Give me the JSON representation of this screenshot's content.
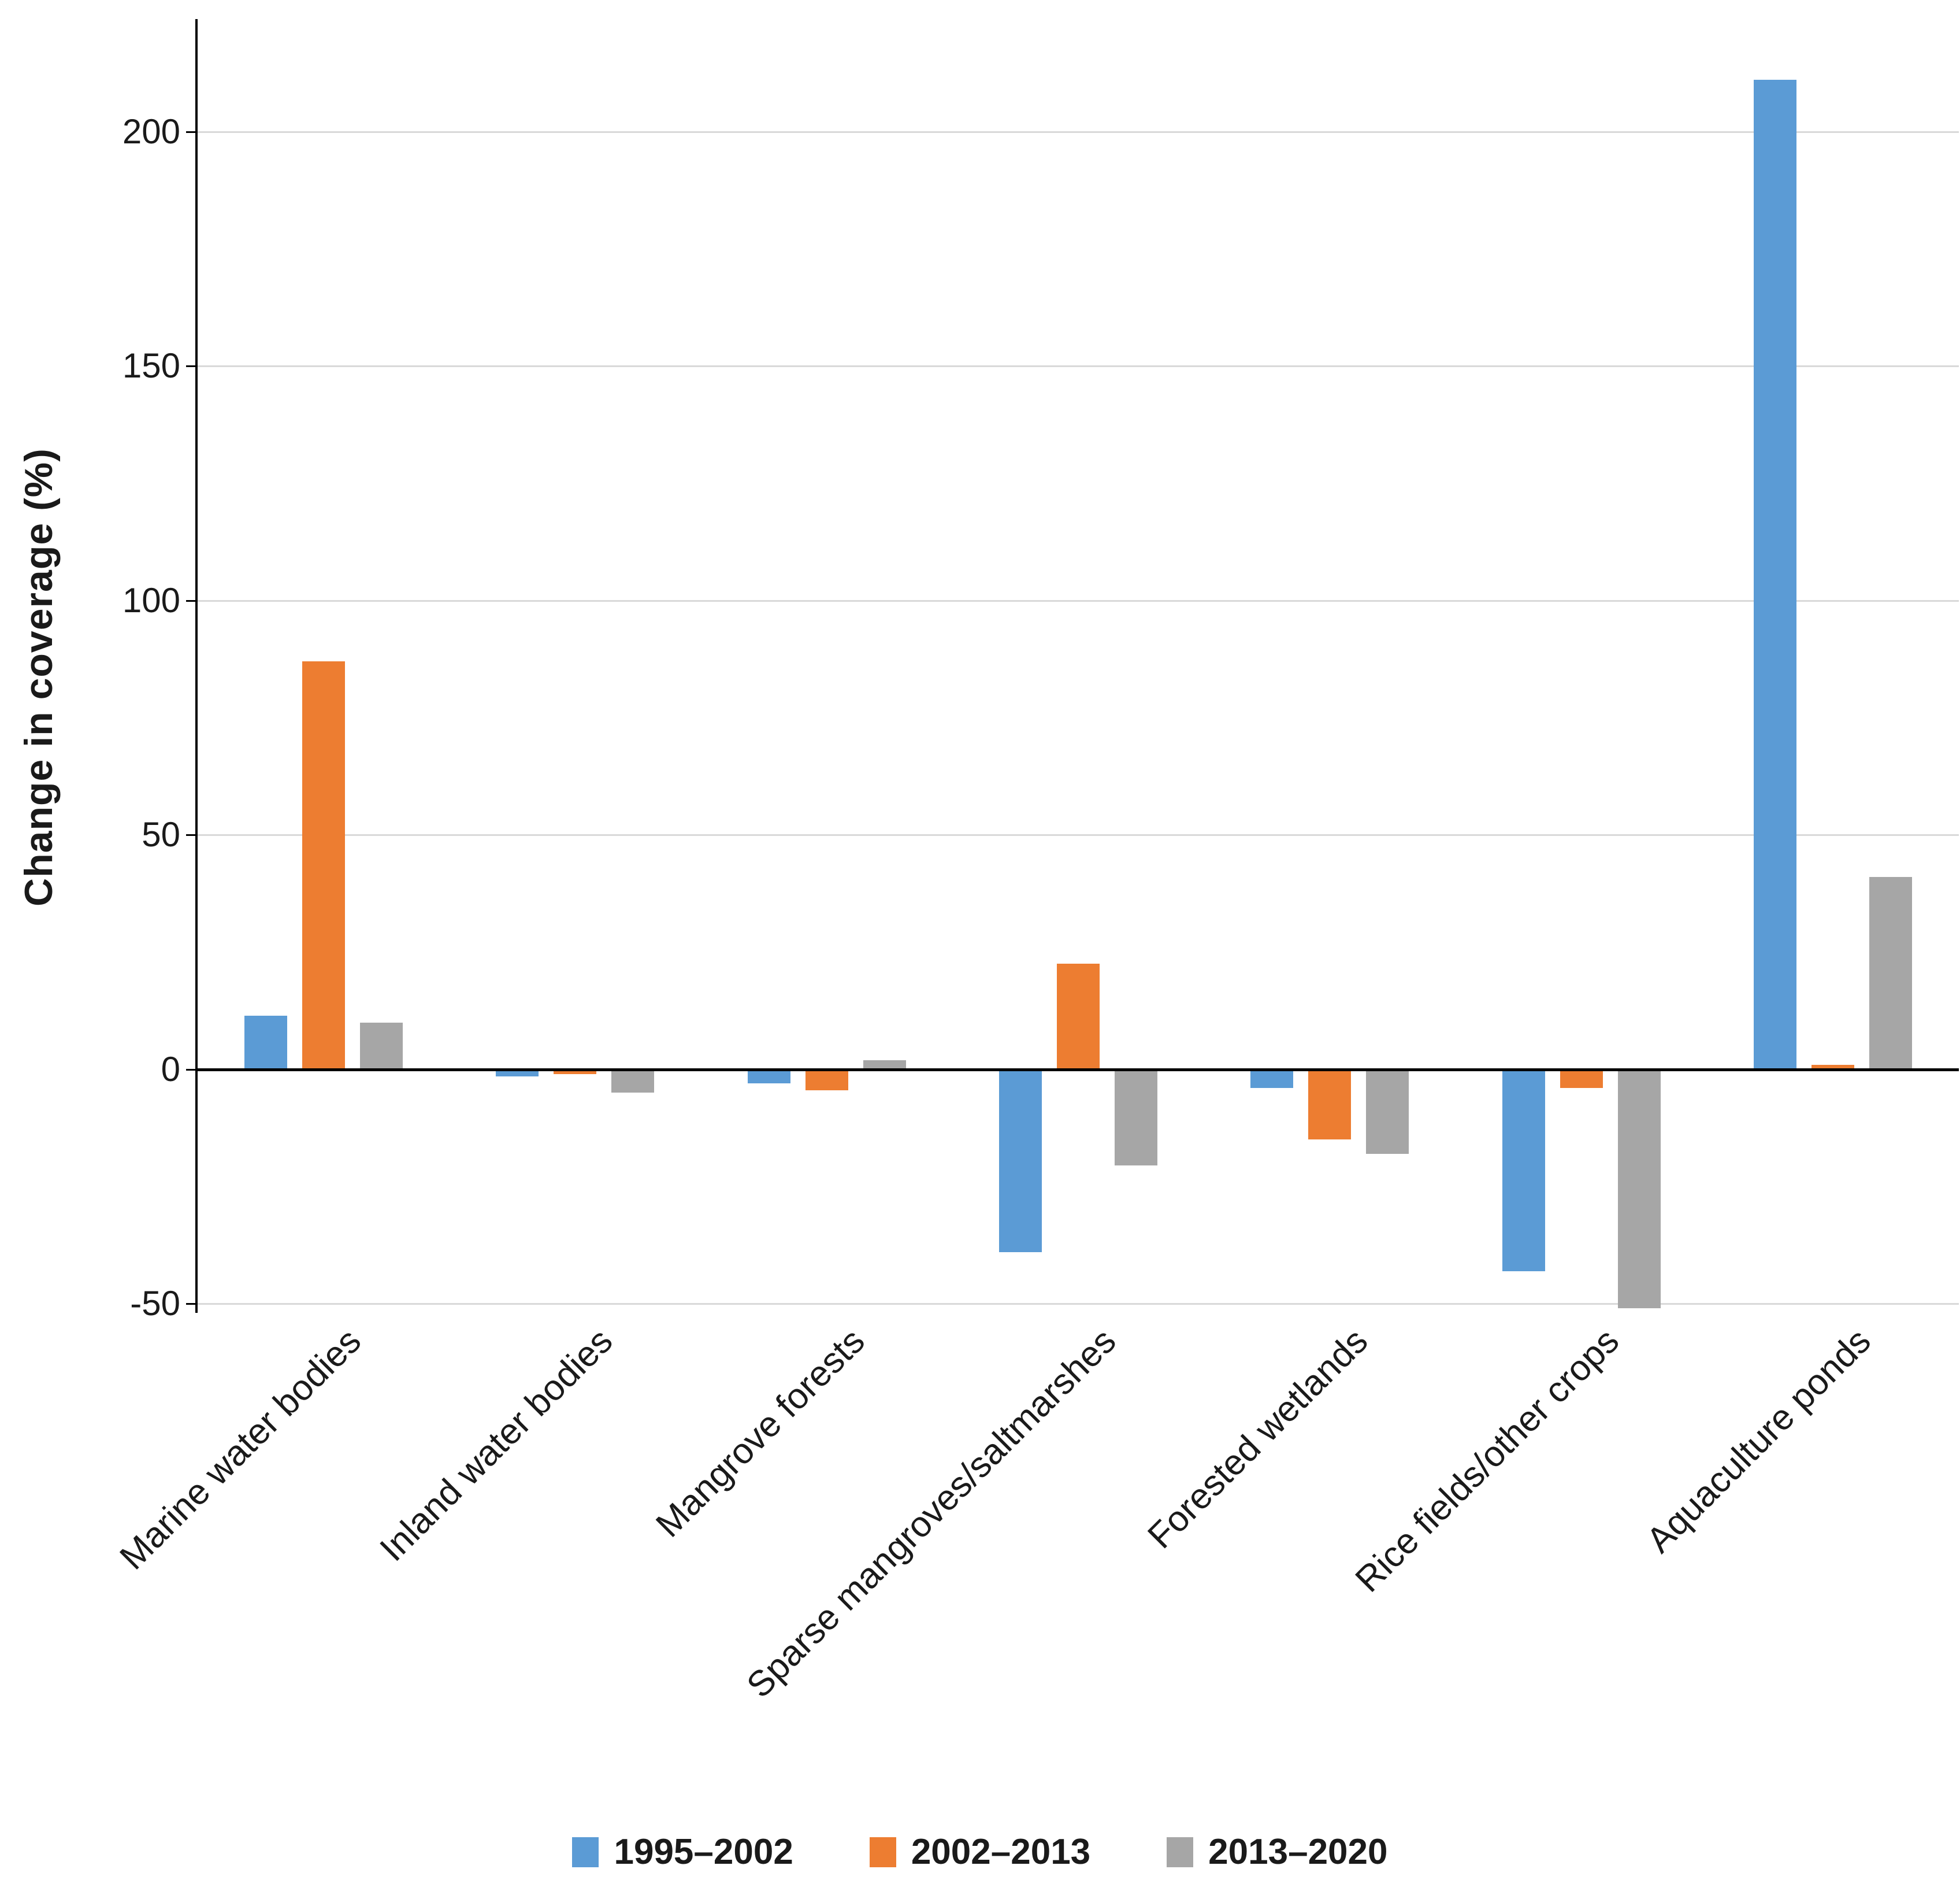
{
  "page": {
    "background": "#ffffff"
  },
  "chart_data": {
    "type": "bar",
    "title": "",
    "xlabel": "",
    "ylabel": "Change in coverage (%)",
    "categories": [
      "Marine water bodies",
      "Inland water bodies",
      "Mangrove forests",
      "Sparse mangroves/saltmarshes",
      "Forested wetlands",
      "Rice fields/other crops",
      "Aquaculture ponds"
    ],
    "series": [
      {
        "name": "1995–2002",
        "color": "#5B9BD5",
        "values": [
          11.5,
          -1.5,
          -3,
          -39,
          -4,
          -43,
          211
        ]
      },
      {
        "name": "2002–2013",
        "color": "#ED7D31",
        "values": [
          87,
          -1,
          -4.5,
          22.5,
          -15,
          -4,
          1
        ]
      },
      {
        "name": "2013–2020",
        "color": "#A6A6A6",
        "values": [
          10,
          -5,
          2,
          -20.5,
          -18,
          -51,
          41
        ]
      }
    ],
    "y_ticks": [
      200,
      150,
      100,
      50,
      0,
      -50
    ],
    "ylim": [
      -56,
      224
    ],
    "grid": true,
    "legend_position": "bottom",
    "axis_color": "#000000",
    "gridline_color": "#D9D9D9"
  }
}
